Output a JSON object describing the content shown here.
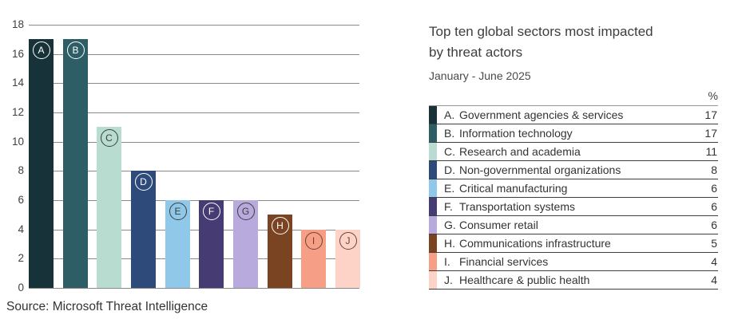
{
  "chart_data": {
    "type": "bar",
    "title": "Top ten global sectors most impacted by threat actors",
    "subtitle": "January - June 2025",
    "categories": [
      "A",
      "B",
      "C",
      "D",
      "E",
      "F",
      "G",
      "H",
      "I",
      "J"
    ],
    "values": [
      17,
      17,
      11,
      8,
      6,
      6,
      6,
      5,
      4,
      4
    ],
    "ylim": [
      0,
      18
    ],
    "ytick_step": 2,
    "grid": true,
    "legend_position": "right-table",
    "colors": [
      "#18323a",
      "#2d5e66",
      "#b8dccf",
      "#2e4a7b",
      "#8fc8e9",
      "#463b73",
      "#b9aadd",
      "#7a4423",
      "#f79e86",
      "#fcd3c6"
    ],
    "badge_colors": [
      "#ffffff",
      "#ffffff",
      "#3d3d3d",
      "#ffffff",
      "#3d3d3d",
      "#ffffff",
      "#3d3d3d",
      "#ffffff",
      "#6e4334",
      "#6e4334"
    ]
  },
  "header": {
    "title_line1": "Top ten global sectors most impacted",
    "title_line2": "by threat actors",
    "subtitle": "January - June 2025"
  },
  "legend_table": {
    "value_header": "%",
    "rows": [
      {
        "letter": "A.",
        "name": "Government agencies & services",
        "value": 17
      },
      {
        "letter": "B.",
        "name": "Information technology",
        "value": 17
      },
      {
        "letter": "C.",
        "name": "Research and academia",
        "value": 11
      },
      {
        "letter": "D.",
        "name": "Non-governmental organizations",
        "value": 8
      },
      {
        "letter": "E.",
        "name": "Critical manufacturing",
        "value": 6
      },
      {
        "letter": "F.",
        "name": "Transportation systems",
        "value": 6
      },
      {
        "letter": "G.",
        "name": "Consumer retail",
        "value": 6
      },
      {
        "letter": "H.",
        "name": "Communications infrastructure",
        "value": 5
      },
      {
        "letter": "I.",
        "name": "Financial services",
        "value": 4
      },
      {
        "letter": "J.",
        "name": "Healthcare & public health",
        "value": 4
      }
    ]
  },
  "source": "Source: Microsoft Threat Intelligence"
}
